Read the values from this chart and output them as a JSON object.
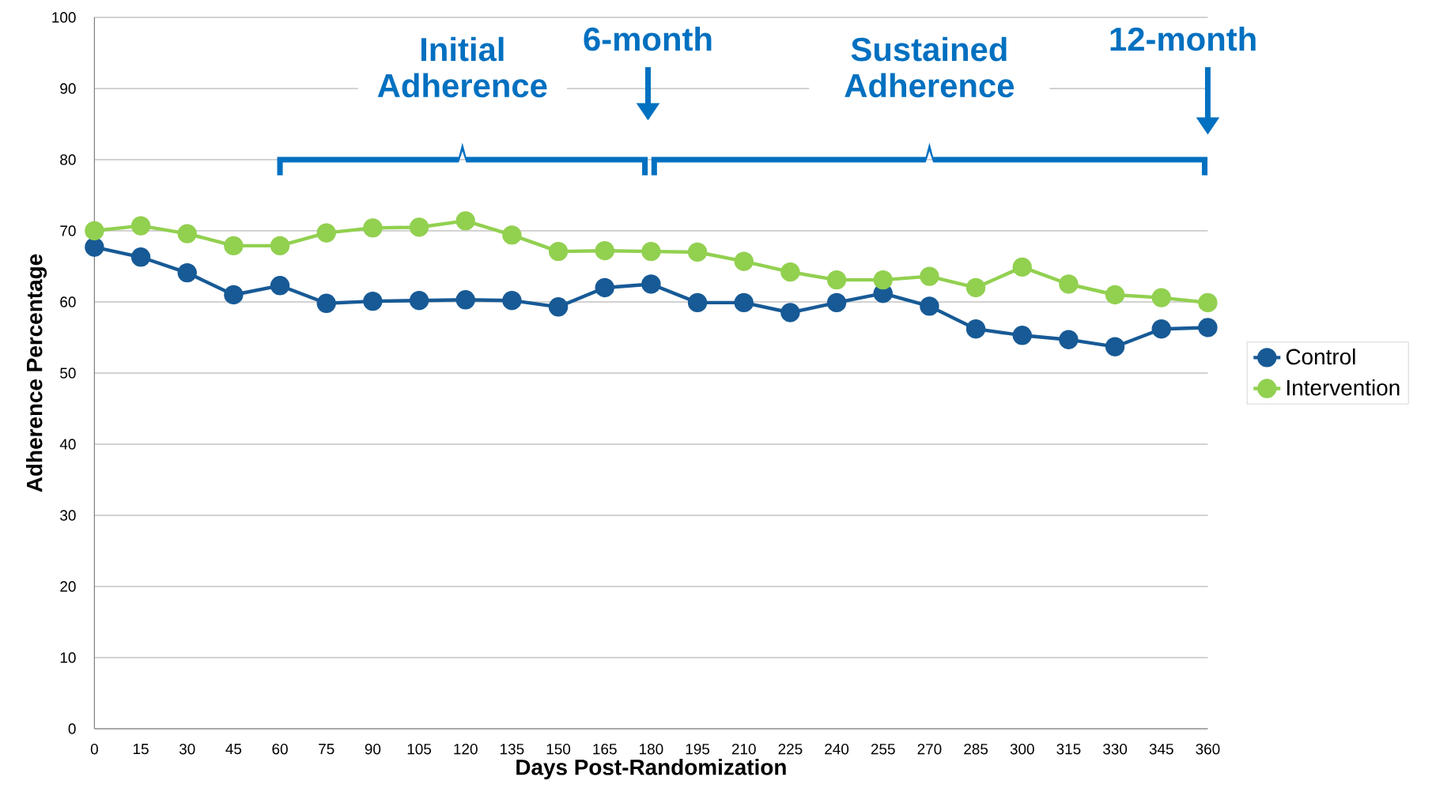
{
  "chart_data": {
    "type": "line",
    "xlabel": "Days Post-Randomization",
    "ylabel": "Adherence Percentage",
    "x": [
      0,
      15,
      30,
      45,
      60,
      75,
      90,
      105,
      120,
      135,
      150,
      165,
      180,
      195,
      210,
      225,
      240,
      255,
      270,
      285,
      300,
      315,
      330,
      345,
      360
    ],
    "series": [
      {
        "name": "Control",
        "color": "#175a96",
        "values": [
          67.7,
          66.3,
          64.1,
          61.0,
          62.3,
          59.8,
          60.1,
          60.2,
          60.3,
          60.2,
          59.3,
          62.0,
          62.5,
          59.9,
          59.9,
          58.5,
          59.9,
          61.2,
          59.4,
          56.2,
          55.3,
          54.7,
          53.7,
          56.2,
          56.4
        ]
      },
      {
        "name": "Intervention",
        "color": "#92d050",
        "values": [
          70.0,
          70.7,
          69.6,
          67.9,
          67.9,
          69.7,
          70.4,
          70.5,
          71.4,
          69.4,
          67.1,
          67.2,
          67.1,
          67.0,
          65.7,
          64.2,
          63.1,
          63.1,
          63.6,
          62.0,
          64.9,
          62.5,
          61.0,
          60.6,
          59.9
        ]
      }
    ],
    "xlim": [
      0,
      360
    ],
    "xticks": [
      0,
      15,
      30,
      45,
      60,
      75,
      90,
      105,
      120,
      135,
      150,
      165,
      180,
      195,
      210,
      225,
      240,
      255,
      270,
      285,
      300,
      315,
      330,
      345,
      360
    ],
    "ylim": [
      0,
      100
    ],
    "yticks": [
      0,
      10,
      20,
      30,
      40,
      50,
      60,
      70,
      80,
      90,
      100
    ],
    "grid": "y",
    "legend": "right",
    "marker": "circle",
    "line_style": "solid",
    "annotations": [
      "Initial Adherence",
      "6-month",
      "Sustained Adherence",
      "12-month"
    ]
  }
}
